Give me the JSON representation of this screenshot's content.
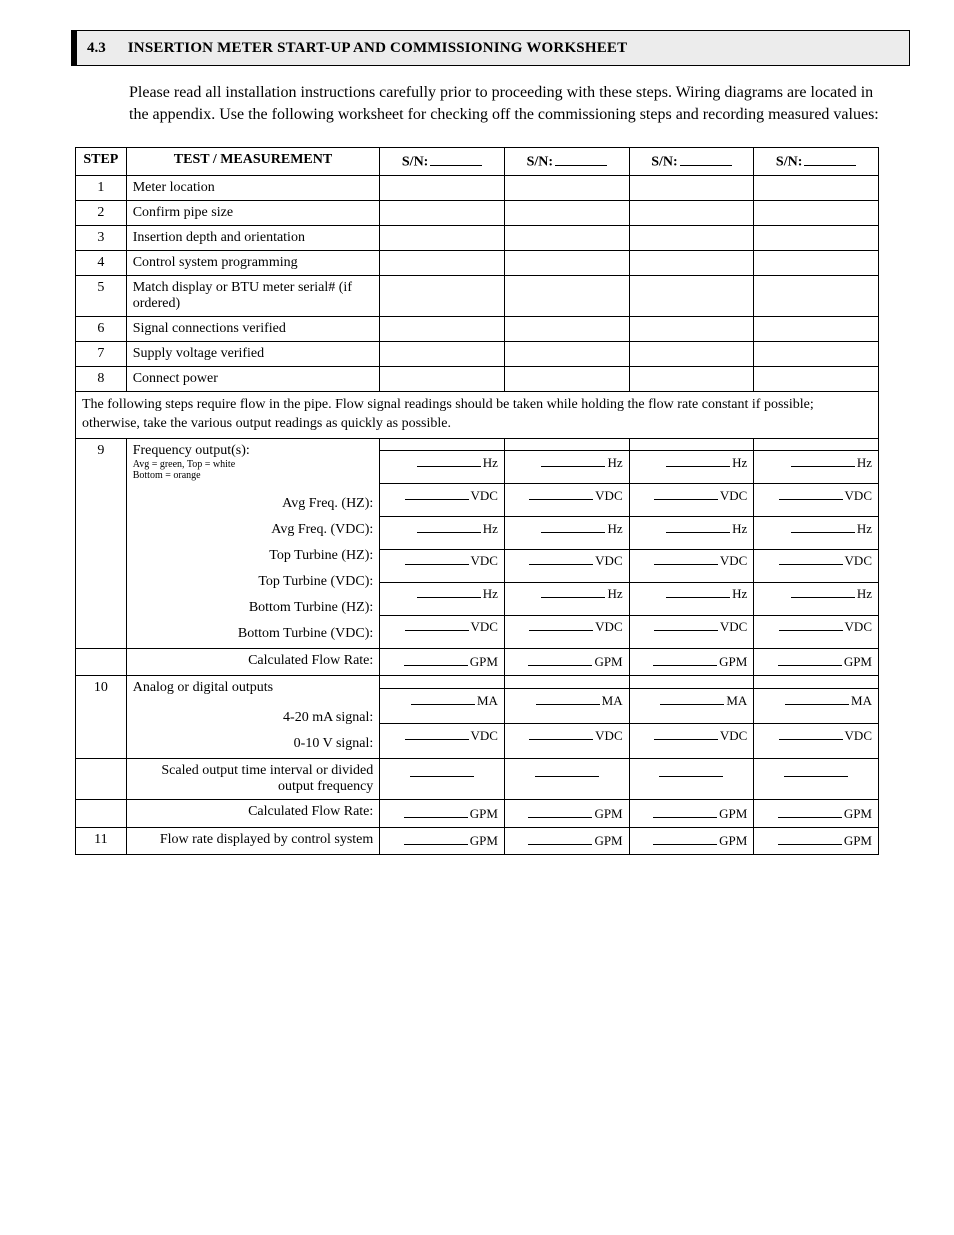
{
  "section": {
    "number": "4.3",
    "title": "INSERTION METER START-UP AND COMMISSIONING WORKSHEET"
  },
  "intro": "Please read all installation instructions carefully prior to proceeding with these steps. Wiring diagrams are located in the appendix. Use the following worksheet for checking off the commissioning steps and recording measured values:",
  "headers": {
    "step": "STEP",
    "test": "TEST / MEASUREMENT",
    "sn_prefix": "S/N:"
  },
  "simple_rows": [
    {
      "n": "1",
      "label": "Meter location"
    },
    {
      "n": "2",
      "label": "Confirm pipe size"
    },
    {
      "n": "3",
      "label": "Insertion depth and orientation"
    },
    {
      "n": "4",
      "label": "Control system programming"
    },
    {
      "n": "5",
      "label": "Match display or BTU meter serial# (if ordered)"
    },
    {
      "n": "6",
      "label": "Signal connections verified"
    },
    {
      "n": "7",
      "label": "Supply voltage verified"
    },
    {
      "n": "8",
      "label": "Connect power"
    }
  ],
  "note": "The following steps require flow in the pipe.  Flow signal readings should be taken while holding the flow rate constant if possible; otherwise, take the various output readings as quickly as possible.",
  "step9": {
    "n": "9",
    "heading": "Frequency output(s):",
    "sub1": "Avg = green, Top = white",
    "sub2": "Bottom  = orange",
    "rows": [
      {
        "label": "Avg Freq. (HZ):",
        "unit": "Hz"
      },
      {
        "label": "Avg Freq. (VDC):",
        "unit": "VDC"
      },
      {
        "label": "Top Turbine (HZ):",
        "unit": "Hz"
      },
      {
        "label": "Top Turbine (VDC):",
        "unit": "VDC"
      },
      {
        "label": "Bottom Turbine (HZ):",
        "unit": "Hz"
      },
      {
        "label": "Bottom Turbine (VDC):",
        "unit": "VDC"
      }
    ],
    "calc": {
      "label": "Calculated Flow Rate:",
      "unit": "GPM"
    }
  },
  "step10": {
    "n": "10",
    "heading": "Analog or digital outputs",
    "rows": [
      {
        "label": "4-20 mA signal:",
        "unit": "MA"
      },
      {
        "label": "0-10 V signal:",
        "unit": "VDC"
      }
    ],
    "scaled": {
      "label": "Scaled output time interval or divided output frequency"
    },
    "calc": {
      "label": "Calculated Flow Rate:",
      "unit": "GPM"
    }
  },
  "step11": {
    "n": "11",
    "label": "Flow rate displayed by control system",
    "unit": "GPM"
  }
}
